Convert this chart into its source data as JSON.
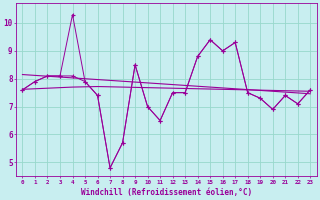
{
  "x": [
    0,
    1,
    2,
    3,
    4,
    5,
    6,
    7,
    8,
    9,
    10,
    11,
    12,
    13,
    14,
    15,
    16,
    17,
    18,
    19,
    20,
    21,
    22,
    23
  ],
  "line1": [
    7.6,
    7.9,
    8.1,
    8.1,
    10.3,
    7.9,
    7.4,
    4.8,
    5.7,
    8.5,
    7.0,
    6.5,
    7.5,
    7.5,
    8.8,
    9.4,
    9.0,
    9.3,
    7.5,
    7.3,
    6.9,
    7.4,
    7.1,
    7.6
  ],
  "line2": [
    7.6,
    7.9,
    8.1,
    8.1,
    8.1,
    7.9,
    7.4,
    4.8,
    5.7,
    8.5,
    7.0,
    6.5,
    7.5,
    7.5,
    8.8,
    9.4,
    9.0,
    9.3,
    7.5,
    7.3,
    6.9,
    7.4,
    7.1,
    7.6
  ],
  "trend1": [
    8.15,
    8.12,
    8.09,
    8.06,
    8.03,
    8.0,
    7.97,
    7.94,
    7.91,
    7.88,
    7.85,
    7.82,
    7.79,
    7.76,
    7.73,
    7.7,
    7.67,
    7.64,
    7.61,
    7.58,
    7.55,
    7.52,
    7.49,
    7.46
  ],
  "trend2": [
    7.62,
    7.64,
    7.66,
    7.68,
    7.7,
    7.71,
    7.72,
    7.71,
    7.7,
    7.69,
    7.68,
    7.67,
    7.66,
    7.65,
    7.64,
    7.63,
    7.62,
    7.61,
    7.6,
    7.59,
    7.58,
    7.57,
    7.56,
    7.55
  ],
  "line_color": "#990099",
  "bg_color": "#c8eef0",
  "grid_color": "#98d8cc",
  "xlabel": "Windchill (Refroidissement éolien,°C)",
  "ylim": [
    4.5,
    10.7
  ],
  "xlim": [
    -0.5,
    23.5
  ],
  "yticks": [
    5,
    6,
    7,
    8,
    9,
    10
  ],
  "xticks": [
    0,
    1,
    2,
    3,
    4,
    5,
    6,
    7,
    8,
    9,
    10,
    11,
    12,
    13,
    14,
    15,
    16,
    17,
    18,
    19,
    20,
    21,
    22,
    23
  ]
}
